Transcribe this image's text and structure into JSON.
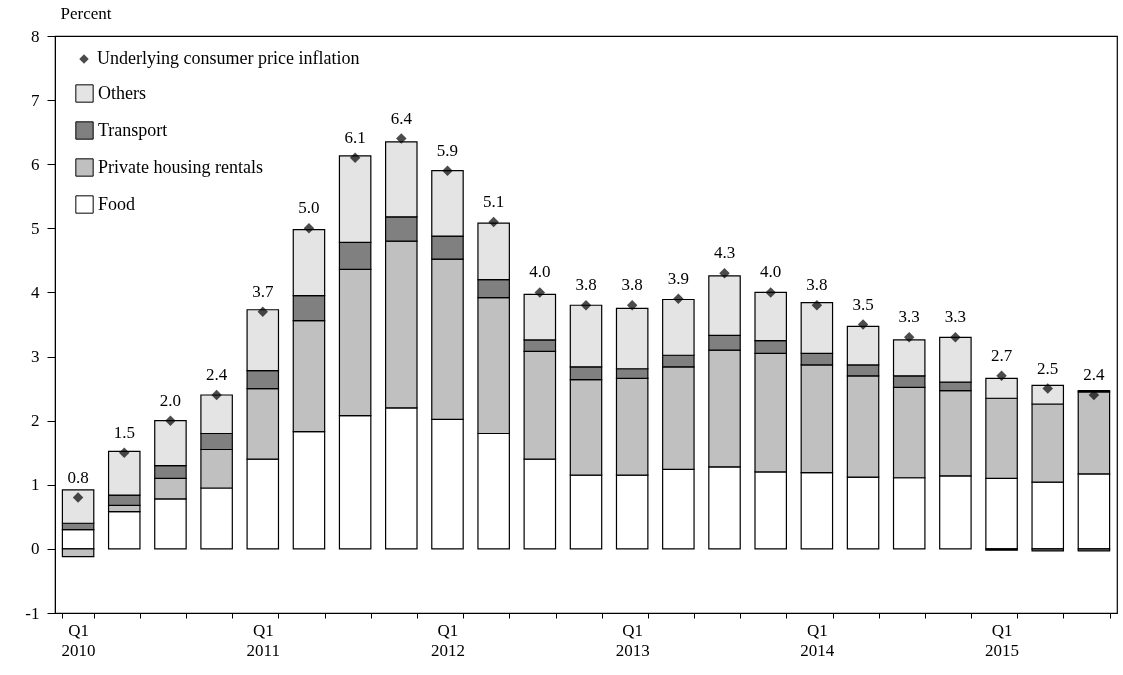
{
  "chart_data": {
    "type": "bar",
    "stacked": true,
    "ylabel": "Percent",
    "categories": [
      "Q1\n2010",
      null,
      null,
      null,
      "Q1\n2011",
      null,
      null,
      null,
      "Q1\n2012",
      null,
      null,
      null,
      "Q1\n2013",
      null,
      null,
      null,
      "Q1\n2014",
      null,
      null,
      null,
      "Q1\n2015",
      null,
      null
    ],
    "series": [
      {
        "name": "Food",
        "color": "#ffffff",
        "values": [
          0.3,
          0.58,
          0.78,
          0.95,
          1.4,
          1.83,
          2.08,
          2.2,
          2.02,
          1.8,
          1.4,
          1.15,
          1.15,
          1.24,
          1.28,
          1.2,
          1.19,
          1.12,
          1.11,
          1.14,
          1.1,
          1.04,
          1.17
        ]
      },
      {
        "name": "Private housing rentals",
        "color": "#c0c0c0",
        "values": [
          -0.12,
          0.1,
          0.32,
          0.6,
          1.1,
          1.73,
          2.28,
          2.6,
          2.5,
          2.12,
          1.68,
          1.49,
          1.51,
          1.6,
          1.82,
          1.85,
          1.68,
          1.58,
          1.41,
          1.33,
          1.25,
          1.22,
          1.28
        ]
      },
      {
        "name": "Transport",
        "color": "#808080",
        "values": [
          0.1,
          0.16,
          0.2,
          0.25,
          0.28,
          0.39,
          0.42,
          0.38,
          0.36,
          0.28,
          0.18,
          0.2,
          0.15,
          0.18,
          0.23,
          0.2,
          0.18,
          0.17,
          0.18,
          0.13,
          -0.02,
          -0.03,
          -0.03
        ]
      },
      {
        "name": "Others",
        "color": "#e4e4e4",
        "values": [
          0.52,
          0.68,
          0.7,
          0.6,
          0.95,
          1.03,
          1.35,
          1.17,
          1.02,
          0.88,
          0.71,
          0.96,
          0.94,
          0.87,
          0.93,
          0.75,
          0.79,
          0.6,
          0.56,
          0.7,
          0.31,
          0.29,
          0.02
        ]
      },
      {
        "name": "Underlying consumer price inflation",
        "type": "scatter",
        "color": "#000000",
        "values": [
          0.8,
          1.5,
          2.0,
          2.4,
          3.7,
          5.0,
          6.1,
          6.4,
          5.9,
          5.1,
          4.0,
          3.8,
          3.8,
          3.9,
          4.3,
          4.0,
          3.8,
          3.5,
          3.3,
          3.3,
          2.7,
          2.5,
          2.4
        ],
        "value_labels": [
          "0.8",
          "1.5",
          "2.0",
          "2.4",
          "3.7",
          "5.0",
          "6.1",
          "6.4",
          "5.9",
          "5.1",
          "4.0",
          "3.8",
          "3.8",
          "3.9",
          "4.3",
          "4.0",
          "3.8",
          "3.5",
          "3.3",
          "3.3",
          "2.7",
          "2.5",
          "2.4"
        ]
      }
    ],
    "ylim": [
      -1,
      8
    ],
    "yticks": [
      -1,
      0,
      1,
      2,
      3,
      4,
      5,
      6,
      7,
      8
    ],
    "grid": false,
    "legend": "top left",
    "marker": "diamond"
  }
}
